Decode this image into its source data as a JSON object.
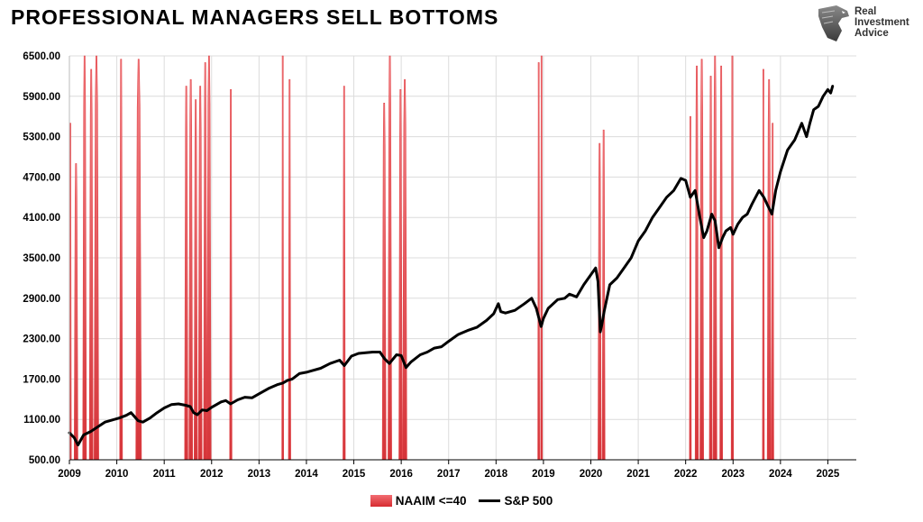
{
  "title": "PROFESSIONAL MANAGERS SELL BOTTOMS",
  "logo": {
    "lines": [
      "Real",
      "Investment",
      "Advice"
    ],
    "icon": "eagle-head-icon"
  },
  "colors": {
    "naaim_fill_top": "#f26d72",
    "naaim_fill_bottom": "#d62b30",
    "sp500_line": "#000000",
    "grid": "#dcdcdc"
  },
  "chart_data": {
    "type": "area+line",
    "xlabel": "",
    "ylabel": "",
    "ylim": [
      500,
      6500
    ],
    "yticks": [
      "6500.00",
      "5900.00",
      "5300.00",
      "4700.00",
      "4100.00",
      "3500.00",
      "2900.00",
      "2300.00",
      "1700.00",
      "1100.00",
      "500.00"
    ],
    "xlim": [
      2009,
      2025.6
    ],
    "xticks": [
      "2009",
      "2010",
      "2011",
      "2012",
      "2013",
      "2014",
      "2015",
      "2016",
      "2017",
      "2018",
      "2019",
      "2020",
      "2021",
      "2022",
      "2023",
      "2024",
      "2025"
    ],
    "grid": "horizontal and vertical",
    "legend_position": "bottom-center",
    "series": [
      {
        "name": "NAAIM <=40",
        "kind": "spikes",
        "note": "periods where NAAIM exposure index <= 40, drawn as full-height red spikes",
        "periods": [
          {
            "start": 2009.0,
            "end": 2009.04,
            "peak": 5500
          },
          {
            "start": 2009.1,
            "end": 2009.18,
            "peak": 4900
          },
          {
            "start": 2009.28,
            "end": 2009.36,
            "peak": 6500
          },
          {
            "start": 2009.42,
            "end": 2009.5,
            "peak": 6300
          },
          {
            "start": 2009.52,
            "end": 2009.62,
            "peak": 6500
          },
          {
            "start": 2010.06,
            "end": 2010.12,
            "peak": 6450
          },
          {
            "start": 2010.4,
            "end": 2010.52,
            "peak": 6450
          },
          {
            "start": 2011.43,
            "end": 2011.5,
            "peak": 6050
          },
          {
            "start": 2011.52,
            "end": 2011.6,
            "peak": 6150
          },
          {
            "start": 2011.63,
            "end": 2011.7,
            "peak": 5850
          },
          {
            "start": 2011.72,
            "end": 2011.8,
            "peak": 6050
          },
          {
            "start": 2011.83,
            "end": 2011.9,
            "peak": 6400
          },
          {
            "start": 2011.9,
            "end": 2011.99,
            "peak": 6500
          },
          {
            "start": 2012.38,
            "end": 2012.43,
            "peak": 6000
          },
          {
            "start": 2013.48,
            "end": 2013.52,
            "peak": 6500
          },
          {
            "start": 2013.62,
            "end": 2013.67,
            "peak": 6150
          },
          {
            "start": 2014.77,
            "end": 2014.82,
            "peak": 6050
          },
          {
            "start": 2015.6,
            "end": 2015.68,
            "peak": 5800
          },
          {
            "start": 2015.72,
            "end": 2015.8,
            "peak": 6500
          },
          {
            "start": 2015.95,
            "end": 2016.02,
            "peak": 6000
          },
          {
            "start": 2016.03,
            "end": 2016.12,
            "peak": 6150
          },
          {
            "start": 2018.88,
            "end": 2018.92,
            "peak": 6400
          },
          {
            "start": 2018.94,
            "end": 2018.98,
            "peak": 6500
          },
          {
            "start": 2020.15,
            "end": 2020.22,
            "peak": 5200
          },
          {
            "start": 2020.24,
            "end": 2020.3,
            "peak": 5400
          },
          {
            "start": 2022.08,
            "end": 2022.12,
            "peak": 5600
          },
          {
            "start": 2022.2,
            "end": 2022.27,
            "peak": 6350
          },
          {
            "start": 2022.3,
            "end": 2022.38,
            "peak": 6450
          },
          {
            "start": 2022.5,
            "end": 2022.56,
            "peak": 6200
          },
          {
            "start": 2022.58,
            "end": 2022.66,
            "peak": 6500
          },
          {
            "start": 2022.72,
            "end": 2022.78,
            "peak": 6350
          },
          {
            "start": 2022.96,
            "end": 2023.01,
            "peak": 6500
          },
          {
            "start": 2023.62,
            "end": 2023.66,
            "peak": 6300
          },
          {
            "start": 2023.72,
            "end": 2023.8,
            "peak": 6150
          },
          {
            "start": 2023.81,
            "end": 2023.86,
            "peak": 5500
          }
        ]
      },
      {
        "name": "S&P 500",
        "kind": "line",
        "x": [
          2009.0,
          2009.1,
          2009.18,
          2009.3,
          2009.45,
          2009.6,
          2009.75,
          2009.9,
          2010.05,
          2010.2,
          2010.3,
          2010.45,
          2010.55,
          2010.7,
          2010.85,
          2011.0,
          2011.15,
          2011.3,
          2011.45,
          2011.55,
          2011.62,
          2011.7,
          2011.8,
          2011.9,
          2012.0,
          2012.2,
          2012.3,
          2012.4,
          2012.55,
          2012.7,
          2012.85,
          2013.0,
          2013.2,
          2013.4,
          2013.5,
          2013.6,
          2013.7,
          2013.85,
          2014.0,
          2014.1,
          2014.3,
          2014.5,
          2014.7,
          2014.8,
          2014.95,
          2015.1,
          2015.4,
          2015.55,
          2015.65,
          2015.75,
          2015.9,
          2016.0,
          2016.1,
          2016.2,
          2016.4,
          2016.55,
          2016.7,
          2016.85,
          2017.0,
          2017.2,
          2017.4,
          2017.6,
          2017.8,
          2017.95,
          2018.05,
          2018.1,
          2018.2,
          2018.4,
          2018.6,
          2018.75,
          2018.85,
          2018.95,
          2019.0,
          2019.1,
          2019.3,
          2019.45,
          2019.55,
          2019.7,
          2019.85,
          2020.0,
          2020.1,
          2020.15,
          2020.2,
          2020.23,
          2020.28,
          2020.4,
          2020.55,
          2020.7,
          2020.85,
          2021.0,
          2021.15,
          2021.3,
          2021.45,
          2021.6,
          2021.75,
          2021.9,
          2022.0,
          2022.1,
          2022.2,
          2022.3,
          2022.38,
          2022.45,
          2022.55,
          2022.62,
          2022.7,
          2022.78,
          2022.85,
          2022.95,
          2023.0,
          2023.1,
          2023.2,
          2023.3,
          2023.4,
          2023.55,
          2023.65,
          2023.75,
          2023.82,
          2023.9,
          2024.0,
          2024.15,
          2024.3,
          2024.45,
          2024.55,
          2024.62,
          2024.7,
          2024.8,
          2024.9,
          2025.0,
          2025.06,
          2025.1
        ],
        "y": [
          900,
          830,
          720,
          870,
          920,
          990,
          1060,
          1090,
          1120,
          1160,
          1200,
          1080,
          1060,
          1120,
          1200,
          1270,
          1320,
          1330,
          1310,
          1290,
          1200,
          1170,
          1240,
          1230,
          1280,
          1360,
          1380,
          1330,
          1390,
          1430,
          1420,
          1480,
          1560,
          1620,
          1640,
          1680,
          1700,
          1780,
          1800,
          1820,
          1860,
          1930,
          1980,
          1900,
          2040,
          2080,
          2100,
          2100,
          2000,
          1930,
          2060,
          2050,
          1870,
          1950,
          2060,
          2100,
          2160,
          2180,
          2260,
          2360,
          2420,
          2470,
          2570,
          2670,
          2820,
          2700,
          2680,
          2720,
          2820,
          2900,
          2750,
          2480,
          2600,
          2750,
          2880,
          2900,
          2960,
          2920,
          3100,
          3250,
          3350,
          3150,
          2400,
          2500,
          2700,
          3100,
          3200,
          3350,
          3500,
          3750,
          3900,
          4100,
          4250,
          4400,
          4500,
          4680,
          4650,
          4400,
          4500,
          4100,
          3800,
          3900,
          4150,
          4050,
          3650,
          3800,
          3900,
          3950,
          3850,
          4000,
          4100,
          4150,
          4300,
          4500,
          4400,
          4250,
          4150,
          4500,
          4780,
          5100,
          5250,
          5500,
          5300,
          5500,
          5700,
          5750,
          5900,
          6000,
          5950,
          6050
        ]
      }
    ]
  },
  "legend": {
    "naaim_label": "NAAIM <=40",
    "sp500_label": "S&P 500"
  }
}
